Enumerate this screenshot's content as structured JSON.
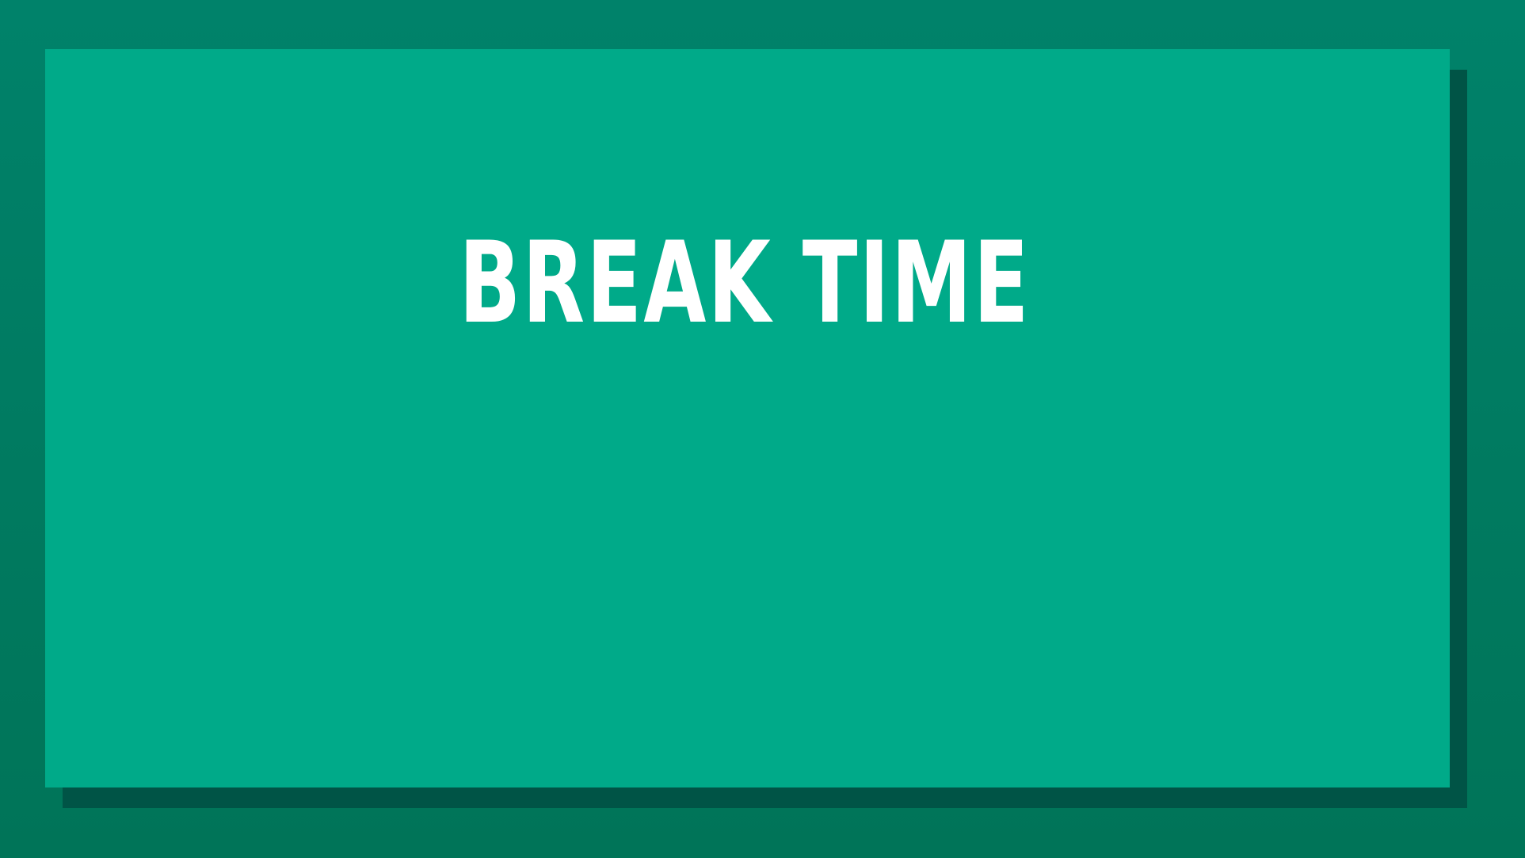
{
  "slide": {
    "title": "BREAK TIME"
  },
  "colors": {
    "outer_background": "#00826A",
    "panel_shadow": "#005446",
    "panel_fill": "#00AA89",
    "title_text": "#FFFFFF"
  }
}
